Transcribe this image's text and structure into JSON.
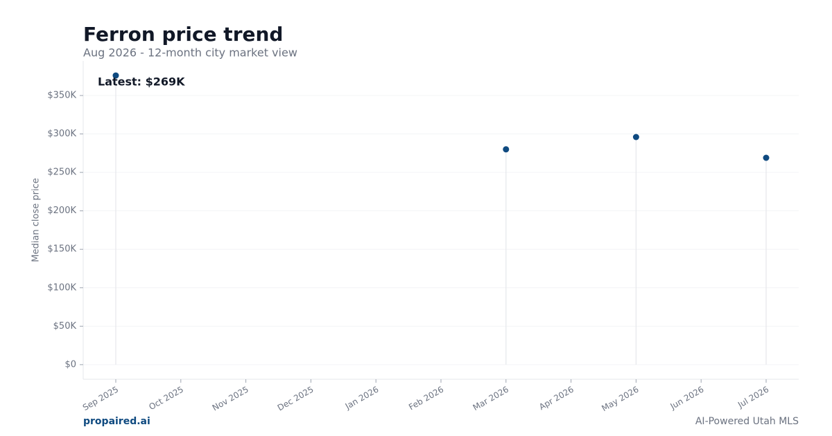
{
  "chart_data": {
    "type": "lollipop",
    "title": "Ferron price trend",
    "subtitle": "Aug 2026 - 12-month city market view",
    "y_label": "Median close price",
    "annotation": "Latest: $269K",
    "footer_left": "propaired.ai",
    "footer_right": "AI-Powered Utah MLS",
    "categories": [
      "Sep 2025",
      "Oct 2025",
      "Nov 2025",
      "Dec 2025",
      "Jan 2026",
      "Feb 2026",
      "Mar 2026",
      "Apr 2026",
      "May 2026",
      "Jun 2026",
      "Jul 2026"
    ],
    "values": [
      376000,
      null,
      null,
      null,
      null,
      null,
      280000,
      null,
      296000,
      null,
      269000
    ],
    "color": "#0f4a80",
    "ylim": [
      -19000,
      395000
    ],
    "yticks": [
      {
        "value": 0,
        "label": "$0"
      },
      {
        "value": 50000,
        "label": "$50K"
      },
      {
        "value": 100000,
        "label": "$100K"
      },
      {
        "value": 150000,
        "label": "$150K"
      },
      {
        "value": 200000,
        "label": "$200K"
      },
      {
        "value": 250000,
        "label": "$250K"
      },
      {
        "value": 300000,
        "label": "$300K"
      },
      {
        "value": 350000,
        "label": "$350K"
      }
    ],
    "grid": true
  }
}
